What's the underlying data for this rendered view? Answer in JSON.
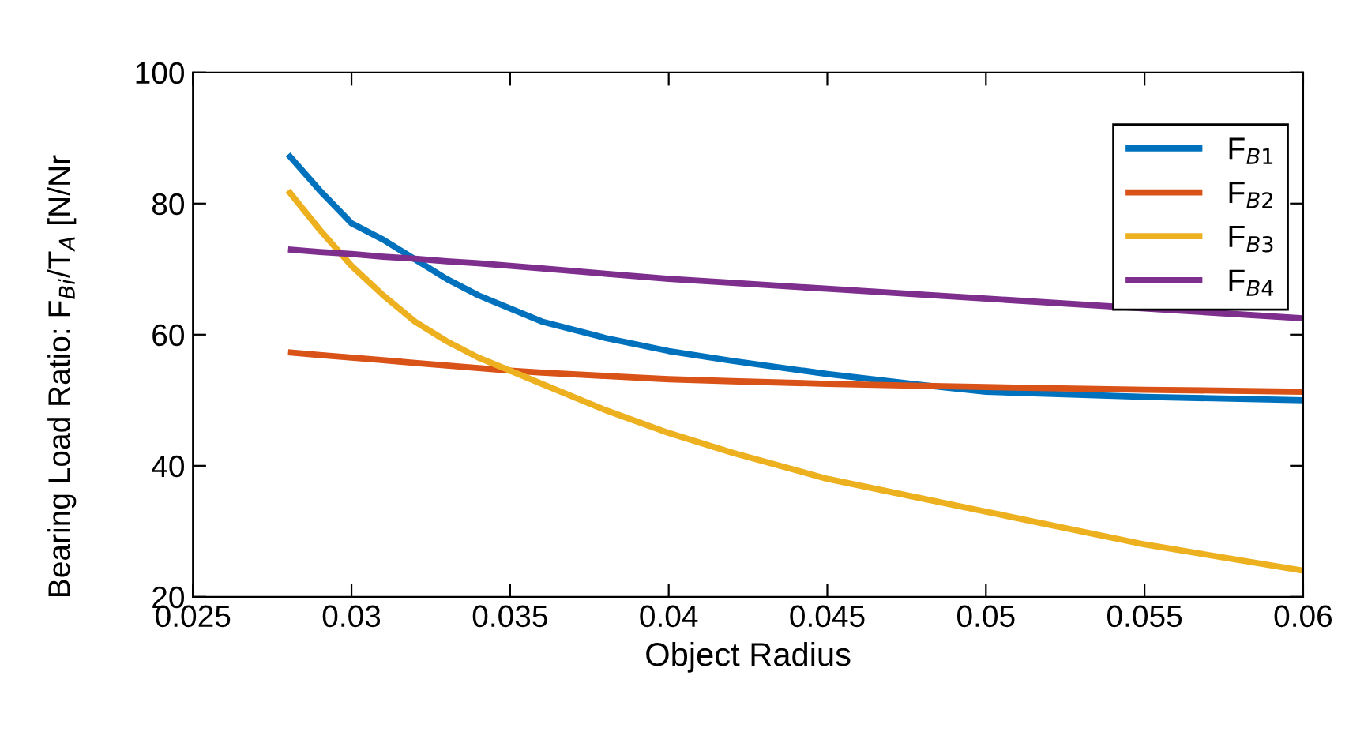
{
  "chart_data": {
    "type": "line",
    "xlabel": "Object Radius",
    "ylabel": "Bearing Load Ratio: F$_{Bi}$/T$_{A}$ [N/Nr",
    "xlim": [
      0.025,
      0.06
    ],
    "ylim": [
      20,
      100
    ],
    "xticks": [
      0.025,
      0.03,
      0.035,
      0.04,
      0.045,
      0.05,
      0.055,
      0.06
    ],
    "yticks": [
      20,
      40,
      60,
      80,
      100
    ],
    "grid": false,
    "legend": "top right",
    "line_style": "solid",
    "marker": "none",
    "x": [
      0.028,
      0.029,
      0.03,
      0.031,
      0.032,
      0.033,
      0.034,
      0.035,
      0.036,
      0.038,
      0.04,
      0.042,
      0.045,
      0.048,
      0.05,
      0.055,
      0.06
    ],
    "series": [
      {
        "name": "F$_{B1}$",
        "color": "#0072bd",
        "values": [
          87.5,
          82,
          77,
          74.5,
          71.5,
          68.5,
          66,
          64,
          62,
          59.5,
          57.5,
          56,
          54,
          52.3,
          51.3,
          50.5,
          50
        ]
      },
      {
        "name": "F$_{B2}$",
        "color": "#d95319",
        "values": [
          57.3,
          56.9,
          56.5,
          56.1,
          55.7,
          55.3,
          54.9,
          54.5,
          54.2,
          53.7,
          53.2,
          52.9,
          52.5,
          52.2,
          52,
          51.6,
          51.3
        ]
      },
      {
        "name": "F$_{B3}$",
        "color": "#edb120",
        "values": [
          82,
          76,
          70.5,
          66,
          62,
          59,
          56.5,
          54.5,
          52.5,
          48.5,
          45,
          42,
          38,
          35,
          33,
          28,
          24
        ]
      },
      {
        "name": "F$_{B4}$",
        "color": "#7e2f8e",
        "values": [
          73,
          72.6,
          72.3,
          71.9,
          71.6,
          71.2,
          70.9,
          70.5,
          70.1,
          69.3,
          68.5,
          67.9,
          67,
          66.1,
          65.5,
          64,
          62.5
        ]
      }
    ]
  }
}
